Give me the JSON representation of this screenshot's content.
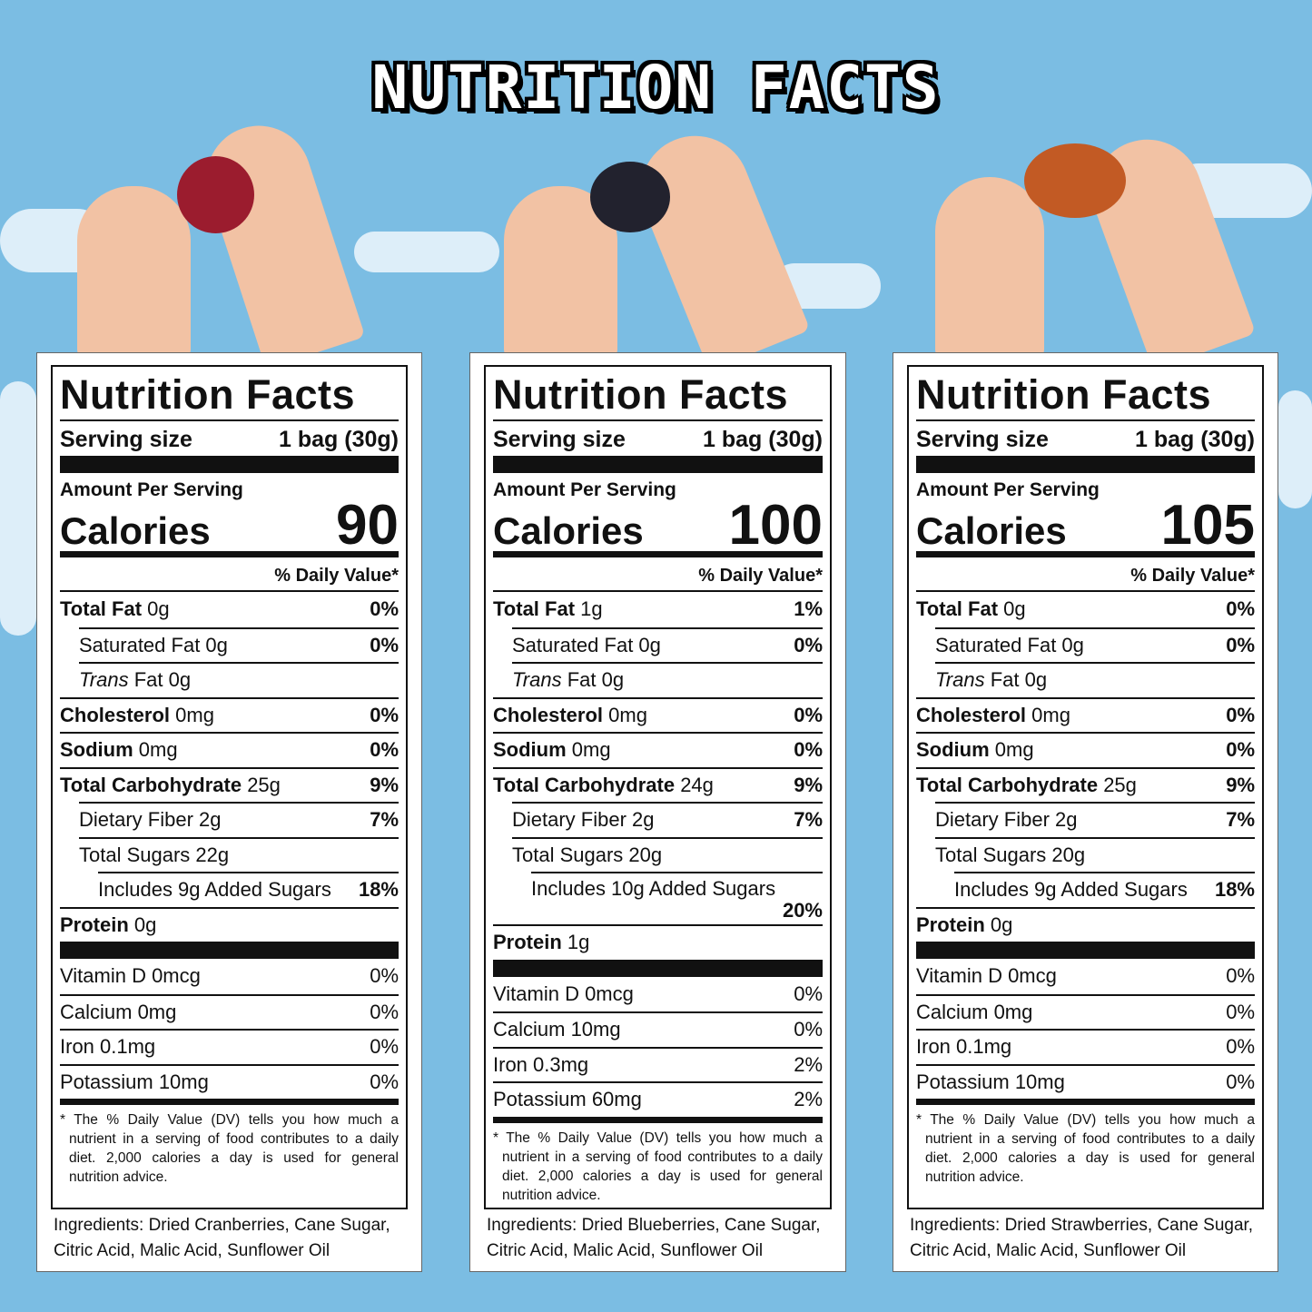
{
  "banner_title": "NUTRITION FACTS",
  "colors": {
    "sky": "#7bbde3",
    "label_ink": "#111111"
  },
  "labels": [
    {
      "fruit": "cranberry",
      "title": "Nutrition Facts",
      "serving_label": "Serving size",
      "serving_value": "1 bag (30g)",
      "amount_per_serving": "Amount Per Serving",
      "calories_label": "Calories",
      "calories": "90",
      "daily_value_header": "% Daily Value*",
      "nutrients": [
        {
          "name": "Total Fat",
          "amount": "0g",
          "dv": "0%",
          "bold": true,
          "indent": 0
        },
        {
          "name": "Saturated Fat 0g",
          "amount": "",
          "dv": "0%",
          "bold": false,
          "indent": 1
        },
        {
          "name": "Trans",
          "amount": "Fat 0g",
          "dv": "",
          "bold": false,
          "italic": true,
          "indent": 1
        },
        {
          "name": "Cholesterol",
          "amount": "0mg",
          "dv": "0%",
          "bold": true,
          "indent": 0
        },
        {
          "name": "Sodium",
          "amount": "0mg",
          "dv": "0%",
          "bold": true,
          "indent": 0
        },
        {
          "name": "Total Carbohydrate",
          "amount": "25g",
          "dv": "9%",
          "bold": true,
          "indent": 0
        },
        {
          "name": "Dietary Fiber 2g",
          "amount": "",
          "dv": "7%",
          "bold": false,
          "indent": 1
        },
        {
          "name": "Total Sugars 22g",
          "amount": "",
          "dv": "",
          "bold": false,
          "indent": 1
        },
        {
          "name": "Includes 9g Added Sugars",
          "amount": "",
          "dv": "18%",
          "bold": false,
          "indent": 2
        },
        {
          "name": "Protein",
          "amount": "0g",
          "dv": "",
          "bold": true,
          "indent": 0
        }
      ],
      "vitamins": [
        {
          "name": "Vitamin D 0mcg",
          "dv": "0%"
        },
        {
          "name": "Calcium 0mg",
          "dv": "0%"
        },
        {
          "name": "Iron 0.1mg",
          "dv": "0%"
        },
        {
          "name": "Potassium 10mg",
          "dv": "0%"
        }
      ],
      "footnote": "* The % Daily Value (DV) tells you how much a nutrient in a serving of food contributes to a daily diet. 2,000 calories a day is used for general nutrition advice.",
      "ingredients": "Ingredients: Dried Cranberries, Cane Sugar, Citric Acid, Malic Acid, Sunflower Oil"
    },
    {
      "fruit": "blueberry",
      "title": "Nutrition Facts",
      "serving_label": "Serving size",
      "serving_value": "1 bag (30g)",
      "amount_per_serving": "Amount Per Serving",
      "calories_label": "Calories",
      "calories": "100",
      "daily_value_header": "% Daily Value*",
      "nutrients": [
        {
          "name": "Total Fat",
          "amount": "1g",
          "dv": "1%",
          "bold": true,
          "indent": 0
        },
        {
          "name": "Saturated Fat 0g",
          "amount": "",
          "dv": "0%",
          "bold": false,
          "indent": 1
        },
        {
          "name": "Trans",
          "amount": "Fat 0g",
          "dv": "",
          "bold": false,
          "italic": true,
          "indent": 1
        },
        {
          "name": "Cholesterol",
          "amount": "0mg",
          "dv": "0%",
          "bold": true,
          "indent": 0
        },
        {
          "name": "Sodium",
          "amount": "0mg",
          "dv": "0%",
          "bold": true,
          "indent": 0
        },
        {
          "name": "Total Carbohydrate",
          "amount": "24g",
          "dv": "9%",
          "bold": true,
          "indent": 0
        },
        {
          "name": "Dietary Fiber 2g",
          "amount": "",
          "dv": "7%",
          "bold": false,
          "indent": 1
        },
        {
          "name": "Total Sugars 20g",
          "amount": "",
          "dv": "",
          "bold": false,
          "indent": 1
        },
        {
          "name": "Includes 10g Added Sugars",
          "amount": "",
          "dv": "20%",
          "bold": false,
          "indent": 2,
          "wrap": true
        },
        {
          "name": "Protein",
          "amount": "1g",
          "dv": "",
          "bold": true,
          "indent": 0
        }
      ],
      "vitamins": [
        {
          "name": "Vitamin D 0mcg",
          "dv": "0%"
        },
        {
          "name": "Calcium 10mg",
          "dv": "0%"
        },
        {
          "name": "Iron 0.3mg",
          "dv": "2%"
        },
        {
          "name": "Potassium 60mg",
          "dv": "2%"
        }
      ],
      "footnote": "* The % Daily Value (DV) tells you how much a nutrient in a serving of food contributes to a daily diet. 2,000 calories a day is used for general nutrition advice.",
      "ingredients": "Ingredients: Dried Blueberries, Cane Sugar, Citric Acid, Malic Acid, Sunflower Oil"
    },
    {
      "fruit": "strawberry",
      "title": "Nutrition Facts",
      "serving_label": "Serving size",
      "serving_value": "1 bag (30g)",
      "amount_per_serving": "Amount Per Serving",
      "calories_label": "Calories",
      "calories": "105",
      "daily_value_header": "% Daily Value*",
      "nutrients": [
        {
          "name": "Total Fat",
          "amount": "0g",
          "dv": "0%",
          "bold": true,
          "indent": 0
        },
        {
          "name": "Saturated Fat 0g",
          "amount": "",
          "dv": "0%",
          "bold": false,
          "indent": 1
        },
        {
          "name": "Trans",
          "amount": "Fat 0g",
          "dv": "",
          "bold": false,
          "italic": true,
          "indent": 1
        },
        {
          "name": "Cholesterol",
          "amount": "0mg",
          "dv": "0%",
          "bold": true,
          "indent": 0
        },
        {
          "name": "Sodium",
          "amount": "0mg",
          "dv": "0%",
          "bold": true,
          "indent": 0
        },
        {
          "name": "Total Carbohydrate",
          "amount": "25g",
          "dv": "9%",
          "bold": true,
          "indent": 0
        },
        {
          "name": "Dietary Fiber 2g",
          "amount": "",
          "dv": "7%",
          "bold": false,
          "indent": 1
        },
        {
          "name": "Total Sugars 20g",
          "amount": "",
          "dv": "",
          "bold": false,
          "indent": 1
        },
        {
          "name": "Includes 9g Added Sugars",
          "amount": "",
          "dv": "18%",
          "bold": false,
          "indent": 2
        },
        {
          "name": "Protein",
          "amount": "0g",
          "dv": "",
          "bold": true,
          "indent": 0
        }
      ],
      "vitamins": [
        {
          "name": "Vitamin D 0mcg",
          "dv": "0%"
        },
        {
          "name": "Calcium 0mg",
          "dv": "0%"
        },
        {
          "name": "Iron 0.1mg",
          "dv": "0%"
        },
        {
          "name": "Potassium 10mg",
          "dv": "0%"
        }
      ],
      "footnote": "* The % Daily Value (DV) tells you how much a nutrient in a serving of food contributes to a daily diet. 2,000 calories a day is used for general nutrition advice.",
      "ingredients": "Ingredients: Dried Strawberries, Cane Sugar, Citric Acid, Malic Acid, Sunflower Oil"
    }
  ]
}
